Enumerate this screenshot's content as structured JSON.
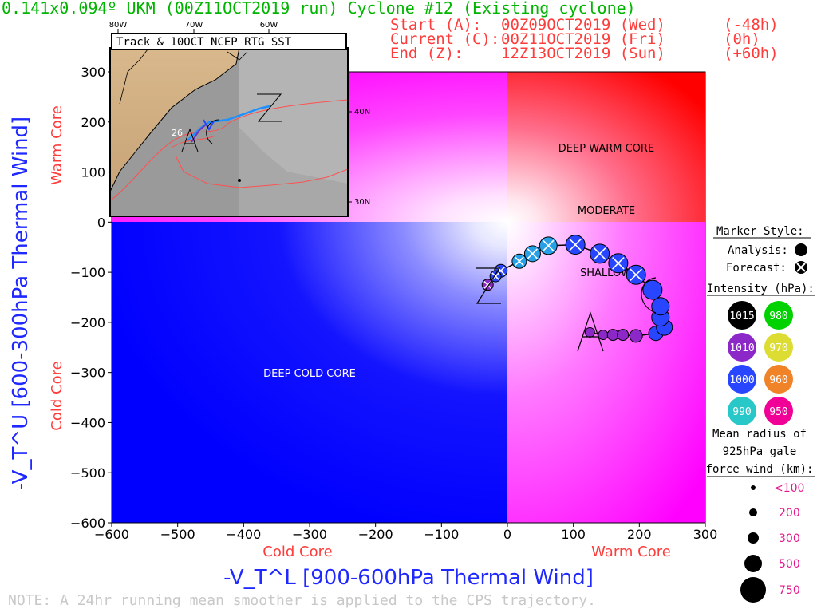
{
  "header": {
    "title": "0.141x0.094º UKM (00Z11OCT2019 run) Cyclone #12 (Existing cyclone)",
    "start_label": "Start (A):",
    "start_value": "00Z09OCT2019 (Wed)",
    "start_offset": "(-48h)",
    "current_label": "Current (C):",
    "current_value": "00Z11OCT2019 (Fri)",
    "current_offset": "(0h)",
    "end_label": "End (Z):",
    "end_value": "12Z13OCT2019 (Sun)",
    "end_offset": "(+60h)"
  },
  "inset": {
    "title": "Track & 10OCT NCEP RTG SST",
    "lon_labels": [
      "80W",
      "70W",
      "60W"
    ],
    "lat_labels": [
      "40N",
      "30N"
    ],
    "sst_label": "26",
    "marker_labels": [
      "A",
      "C",
      "Z"
    ]
  },
  "regions": {
    "deep_warm_core": "DEEP WARM CORE",
    "moderate": "MODERATE",
    "shallow": "SHALLOW",
    "deep_cold_core": "DEEP COLD CORE"
  },
  "axes": {
    "xlabel": "-V_T^L [900-600hPa Thermal Wind]",
    "ylabel": "-V_T^U [600-300hPa Thermal Wind]",
    "x_cold": "Cold Core",
    "x_warm": "Warm Core",
    "y_warm": "Warm Core",
    "y_cold": "Cold Core"
  },
  "legend": {
    "marker_style": "Marker Style:",
    "analysis": "Analysis:",
    "forecast": "Forecast:",
    "intensity": "Intensity (hPa):",
    "intensity_values": [
      "1015",
      "980",
      "1010",
      "970",
      "1000",
      "960",
      "990",
      "950"
    ],
    "intensity_colors": [
      "#000000",
      "#00d200",
      "#8c28c8",
      "#dcdc32",
      "#2846ff",
      "#f08228",
      "#28c8c8",
      "#f00096"
    ],
    "radius_title_1": "Mean radius of",
    "radius_title_2": "925hPa gale",
    "radius_title_3": "force wind (km):",
    "radius_values": [
      "<100",
      "200",
      "300",
      "500",
      "750"
    ]
  },
  "note": "NOTE: A 24hr running mean smoother is applied to the CPS trajectory.",
  "colors": {
    "cold": "#0000ff",
    "warm_upper": "#ff0000",
    "warm_lower": "#ff00ff",
    "text_red": "#ff3c3c",
    "title_green": "#00b400",
    "axis_blue": "#1e28ff"
  },
  "chart_data": {
    "type": "scatter",
    "title": "",
    "xlabel": "-V_T^L [900-600hPa Thermal Wind]",
    "ylabel": "-V_T^U [600-300hPa Thermal Wind]",
    "xlim": [
      -600,
      300
    ],
    "ylim": [
      -600,
      300
    ],
    "xticks": [
      -600,
      -500,
      -400,
      -300,
      -200,
      -100,
      0,
      100,
      200,
      300
    ],
    "yticks": [
      -600,
      -500,
      -400,
      -300,
      -200,
      -100,
      0,
      100,
      200,
      300
    ],
    "series": [
      {
        "name": "Analysis",
        "points": [
          {
            "x": 125,
            "y": -220,
            "color": "#8c28c8",
            "r": 6
          },
          {
            "x": 145,
            "y": -225,
            "color": "#8c28c8",
            "r": 6
          },
          {
            "x": 160,
            "y": -225,
            "color": "#8c28c8",
            "r": 7
          },
          {
            "x": 175,
            "y": -225,
            "color": "#8c28c8",
            "r": 7
          },
          {
            "x": 195,
            "y": -227,
            "color": "#8c28c8",
            "r": 8
          },
          {
            "x": 225,
            "y": -222,
            "color": "#2846ff",
            "r": 9
          },
          {
            "x": 238,
            "y": -210,
            "color": "#2846ff",
            "r": 10
          },
          {
            "x": 232,
            "y": -190,
            "color": "#2846ff",
            "r": 11
          },
          {
            "x": 232,
            "y": -168,
            "color": "#2846ff",
            "r": 11
          },
          {
            "x": 220,
            "y": -135,
            "color": "#2846ff",
            "r": 12
          }
        ]
      },
      {
        "name": "Forecast",
        "points": [
          {
            "x": 195,
            "y": -105,
            "color": "#2846ff",
            "r": 12
          },
          {
            "x": 168,
            "y": -82,
            "color": "#2846ff",
            "r": 12
          },
          {
            "x": 140,
            "y": -63,
            "color": "#2846ff",
            "r": 12
          },
          {
            "x": 103,
            "y": -45,
            "color": "#2846ff",
            "r": 12
          },
          {
            "x": 62,
            "y": -47,
            "color": "#28a0e6",
            "r": 11
          },
          {
            "x": 38,
            "y": -63,
            "color": "#28a0e6",
            "r": 10
          },
          {
            "x": 18,
            "y": -78,
            "color": "#28a0e6",
            "r": 9
          },
          {
            "x": -10,
            "y": -97,
            "color": "#2846ff",
            "r": 8
          },
          {
            "x": -18,
            "y": -108,
            "color": "#2846ff",
            "r": 7
          },
          {
            "x": -30,
            "y": -125,
            "color": "#8c28c8",
            "r": 7
          }
        ]
      }
    ],
    "annotations": [
      "A",
      "C",
      "Z",
      "DEEP WARM CORE",
      "MODERATE",
      "SHALLOW",
      "DEEP COLD CORE"
    ]
  }
}
